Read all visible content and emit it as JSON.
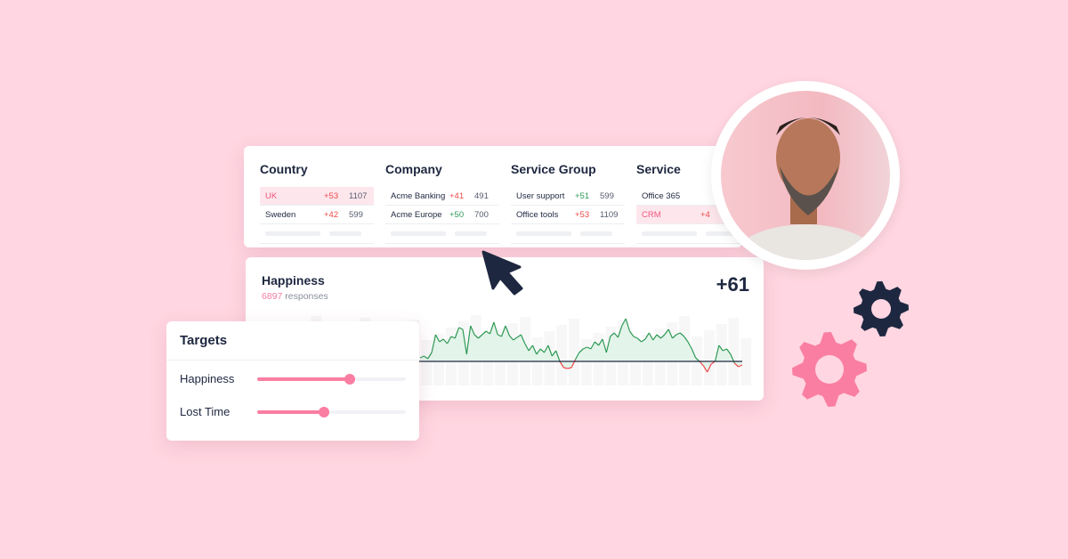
{
  "filters": {
    "columns": [
      {
        "title": "Country",
        "rows": [
          {
            "name": "UK",
            "delta": "+53",
            "count": "1107",
            "selected": true,
            "delta_color": "red"
          },
          {
            "name": "Sweden",
            "delta": "+42",
            "count": "599",
            "selected": false,
            "delta_color": "red"
          }
        ]
      },
      {
        "title": "Company",
        "rows": [
          {
            "name": "Acme Banking",
            "delta": "+41",
            "count": "491",
            "selected": false,
            "delta_color": "red"
          },
          {
            "name": "Acme Europe",
            "delta": "+50",
            "count": "700",
            "selected": false,
            "delta_color": "green"
          }
        ]
      },
      {
        "title": "Service Group",
        "rows": [
          {
            "name": "User support",
            "delta": "+51",
            "count": "599",
            "selected": false,
            "delta_color": "green"
          },
          {
            "name": "Office tools",
            "delta": "+53",
            "count": "1109",
            "selected": false,
            "delta_color": "red"
          }
        ]
      },
      {
        "title": "Service",
        "rows": [
          {
            "name": "Office 365",
            "delta": "",
            "count": "",
            "selected": false,
            "delta_color": "green"
          },
          {
            "name": "CRM",
            "delta": "+4",
            "count": "",
            "selected": true,
            "delta_color": "red"
          }
        ]
      }
    ]
  },
  "happiness": {
    "title": "Happiness",
    "responses_count": "6897",
    "responses_label": "responses",
    "score": "+61",
    "chart_data": {
      "type": "line",
      "baseline": 0,
      "positive_color": "#2f9a55",
      "negative_color": "#ef4b4b",
      "values": [
        4,
        6,
        3,
        10,
        30,
        22,
        25,
        20,
        28,
        26,
        38,
        36,
        8,
        40,
        30,
        26,
        30,
        34,
        31,
        44,
        30,
        28,
        40,
        29,
        24,
        27,
        30,
        20,
        12,
        18,
        8,
        14,
        10,
        18,
        6,
        12,
        0,
        -7,
        -8,
        -7,
        2,
        10,
        14,
        16,
        14,
        22,
        18,
        25,
        10,
        28,
        32,
        27,
        40,
        48,
        34,
        28,
        26,
        22,
        25,
        32,
        24,
        30,
        26,
        30,
        36,
        26,
        30,
        32,
        28,
        22,
        14,
        4,
        0,
        -5,
        -12,
        -3,
        0,
        18,
        12,
        14,
        8,
        -2,
        -6,
        -4
      ]
    }
  },
  "targets": {
    "title": "Targets",
    "items": [
      {
        "label": "Happiness",
        "value_percent": 62
      },
      {
        "label": "Lost Time",
        "value_percent": 45
      }
    ]
  },
  "colors": {
    "background": "#ffd6e1",
    "accent": "#fa7ea2",
    "navy": "#1e2740"
  }
}
